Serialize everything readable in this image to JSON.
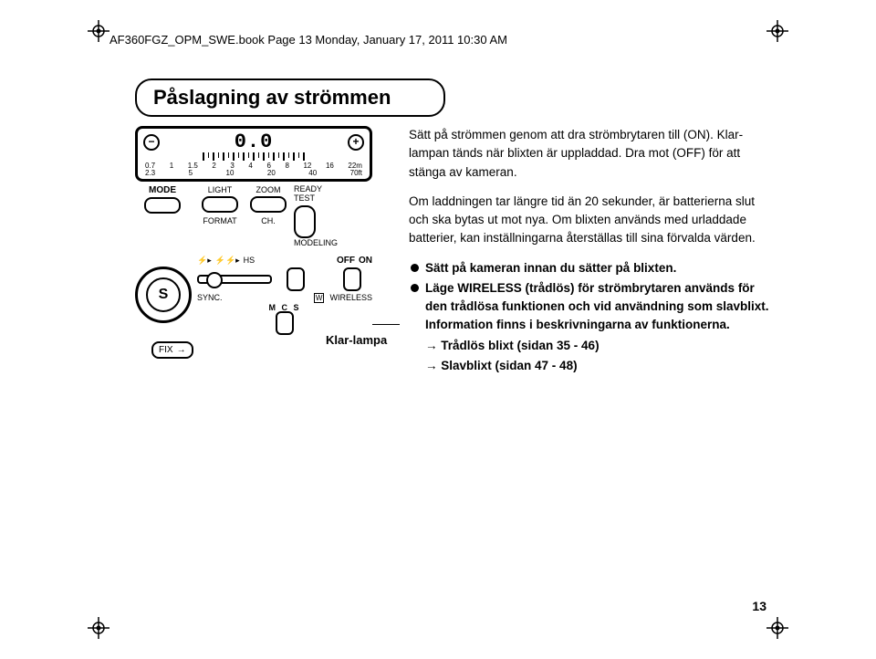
{
  "header": "AF360FGZ_OPM_SWE.book  Page 13  Monday, January 17, 2011  10:30 AM",
  "section_title": "Påslagning av strömmen",
  "device": {
    "readout": "0.0",
    "scale_m": {
      "values": [
        "0.7",
        "1",
        "1.5",
        "2",
        "3",
        "4",
        "6",
        "8",
        "12",
        "16",
        "22m"
      ]
    },
    "scale_ft": {
      "values": [
        "2.3",
        "",
        "5",
        "",
        "10",
        "",
        "20",
        "",
        "40",
        "",
        "70ft"
      ]
    },
    "labels": {
      "mode": "MODE",
      "light": "LIGHT",
      "zoom": "ZOOM",
      "ready": "READY",
      "test": "TEST",
      "format": "FORMAT",
      "ch": "CH.",
      "modeling": "MODELING",
      "hs": "HS",
      "off": "OFF",
      "on": "ON",
      "sync": "SYNC.",
      "wireless": "WIRELESS",
      "mcs": "M C S",
      "fix": "FIX",
      "s": "S"
    },
    "klar_lampa": "Klar-lampa"
  },
  "body": {
    "p1": "Sätt på strömmen genom att dra strömbrytaren till (ON). Klar-lampan tänds när blixten är uppladdad. Dra mot (OFF) för att stänga av kameran.",
    "p2": "Om laddningen tar längre tid än 20 sekunder, är batterierna slut och ska bytas ut mot nya. Om blixten används med urladdade batterier, kan inställningarna återställas till sina förvalda värden.",
    "b1": "Sätt på kameran innan du sätter på blixten.",
    "b2": "Läge WIRELESS (trådlös) för strömbrytaren används för den trådlösa funktionen och vid användning som slavblixt. Information finns i beskrivningarna av funktionerna.",
    "a1": "Trådlös blixt (sidan 35 - 46)",
    "a2": "Slavblixt (sidan 47 - 48)"
  },
  "page_number": "13"
}
